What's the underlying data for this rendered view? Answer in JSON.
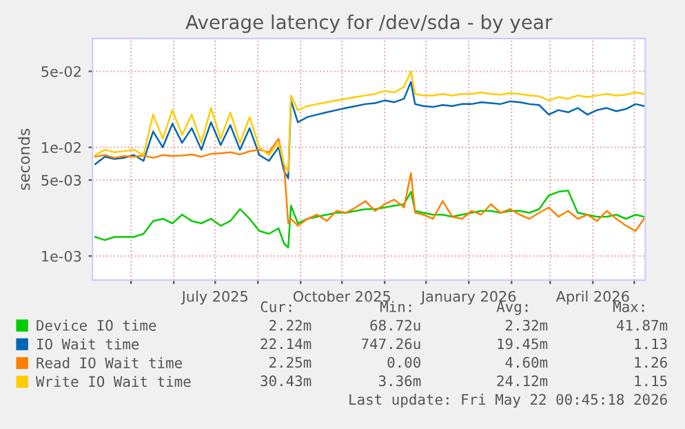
{
  "chart_data": {
    "type": "line",
    "title": "Average latency for /dev/sda - by year",
    "ylabel": "seconds",
    "log": true,
    "grid": true,
    "legend": "bottom",
    "xlim": [
      "2025-04-03",
      "2026-05-09"
    ],
    "xticks": [
      {
        "value": "2025-05-01",
        "label": null
      },
      {
        "value": "2025-06-01",
        "label": null
      },
      {
        "value": "2025-07-01",
        "label": "July 2025"
      },
      {
        "value": "2025-08-01",
        "label": null
      },
      {
        "value": "2025-09-01",
        "label": null
      },
      {
        "value": "2025-10-01",
        "label": "October 2025"
      },
      {
        "value": "2025-11-01",
        "label": null
      },
      {
        "value": "2025-12-01",
        "label": null
      },
      {
        "value": "2026-01-01",
        "label": "January 2026"
      },
      {
        "value": "2026-02-01",
        "label": null
      },
      {
        "value": "2026-03-01",
        "label": null
      },
      {
        "value": "2026-04-01",
        "label": "April 2026"
      },
      {
        "value": "2026-05-01",
        "label": null
      }
    ],
    "ylim": [
      0.0006,
      0.1
    ],
    "yticks": [
      {
        "value": 0.001,
        "label": "1e-03"
      },
      {
        "value": 0.005,
        "label": "5e-03"
      },
      {
        "value": 0.01,
        "label": "1e-02"
      },
      {
        "value": 0.05,
        "label": "5e-02"
      }
    ],
    "x": [
      "2025-04-05",
      "2025-04-12",
      "2025-04-19",
      "2025-04-26",
      "2025-05-03",
      "2025-05-10",
      "2025-05-17",
      "2025-05-24",
      "2025-05-31",
      "2025-06-07",
      "2025-06-14",
      "2025-06-21",
      "2025-06-28",
      "2025-07-05",
      "2025-07-12",
      "2025-07-19",
      "2025-07-26",
      "2025-08-02",
      "2025-08-09",
      "2025-08-16",
      "2025-08-20",
      "2025-08-23",
      "2025-08-25",
      "2025-08-30",
      "2025-09-06",
      "2025-09-13",
      "2025-09-20",
      "2025-09-27",
      "2025-10-04",
      "2025-10-11",
      "2025-10-18",
      "2025-10-25",
      "2025-11-01",
      "2025-11-08",
      "2025-11-15",
      "2025-11-20",
      "2025-11-23",
      "2025-11-29",
      "2025-12-06",
      "2025-12-13",
      "2025-12-20",
      "2025-12-27",
      "2026-01-03",
      "2026-01-10",
      "2026-01-17",
      "2026-01-24",
      "2026-01-31",
      "2026-02-07",
      "2026-02-14",
      "2026-02-21",
      "2026-02-28",
      "2026-03-07",
      "2026-03-14",
      "2026-03-21",
      "2026-03-28",
      "2026-04-04",
      "2026-04-11",
      "2026-04-18",
      "2026-04-25",
      "2026-05-02",
      "2026-05-08"
    ],
    "series": [
      {
        "name": "Device IO time",
        "color": "#00cc00",
        "values": [
          0.0015,
          0.0014,
          0.0015,
          0.0015,
          0.0015,
          0.0016,
          0.0021,
          0.0022,
          0.002,
          0.0024,
          0.0021,
          0.002,
          0.0022,
          0.0019,
          0.0021,
          0.0027,
          0.0022,
          0.0017,
          0.0016,
          0.0018,
          0.0013,
          0.0012,
          0.0029,
          0.002,
          0.0022,
          0.0023,
          0.0024,
          0.0025,
          0.0025,
          0.0026,
          0.0027,
          0.0027,
          0.0028,
          0.0029,
          0.003,
          0.0039,
          0.0026,
          0.0025,
          0.0024,
          0.0024,
          0.0023,
          0.0024,
          0.0025,
          0.0026,
          0.0026,
          0.0025,
          0.0026,
          0.0026,
          0.0025,
          0.0027,
          0.0036,
          0.0039,
          0.004,
          0.0025,
          0.0024,
          0.0023,
          0.0023,
          0.0024,
          0.0022,
          0.0024,
          0.0023
        ]
      },
      {
        "name": "IO Wait time",
        "color": "#0066b3",
        "values": [
          0.007,
          0.0082,
          0.0078,
          0.008,
          0.0085,
          0.0075,
          0.014,
          0.01,
          0.0165,
          0.011,
          0.015,
          0.0095,
          0.017,
          0.0105,
          0.016,
          0.0095,
          0.015,
          0.0085,
          0.0075,
          0.01,
          0.006,
          0.0052,
          0.027,
          0.017,
          0.019,
          0.02,
          0.021,
          0.022,
          0.023,
          0.024,
          0.025,
          0.0255,
          0.027,
          0.026,
          0.028,
          0.04,
          0.025,
          0.024,
          0.0235,
          0.0245,
          0.024,
          0.025,
          0.025,
          0.026,
          0.0255,
          0.025,
          0.0265,
          0.026,
          0.025,
          0.0245,
          0.02,
          0.022,
          0.021,
          0.023,
          0.02,
          0.022,
          0.023,
          0.0215,
          0.0225,
          0.025,
          0.024
        ]
      },
      {
        "name": "Read IO Wait time",
        "color": "#ff8000",
        "values": [
          0.0082,
          0.0085,
          0.008,
          0.0083,
          0.0082,
          0.0084,
          0.008,
          0.0085,
          0.0083,
          0.0084,
          0.0086,
          0.0082,
          0.0087,
          0.0088,
          0.009,
          0.0086,
          0.0092,
          0.0095,
          0.009,
          0.012,
          0.0068,
          0.002,
          0.0022,
          0.0019,
          0.0022,
          0.0024,
          0.0021,
          0.0026,
          0.0025,
          0.0028,
          0.0032,
          0.0026,
          0.003,
          0.0033,
          0.0028,
          0.0058,
          0.0025,
          0.0024,
          0.0022,
          0.0032,
          0.0023,
          0.0022,
          0.0026,
          0.0024,
          0.003,
          0.0025,
          0.0027,
          0.0024,
          0.0022,
          0.0025,
          0.0028,
          0.0023,
          0.0026,
          0.0022,
          0.0024,
          0.0021,
          0.0026,
          0.0022,
          0.0019,
          0.0017,
          0.0022
        ]
      },
      {
        "name": "Write IO Wait time",
        "color": "#ffcc00",
        "values": [
          0.0085,
          0.0095,
          0.009,
          0.0092,
          0.0095,
          0.0085,
          0.02,
          0.012,
          0.022,
          0.013,
          0.02,
          0.011,
          0.023,
          0.012,
          0.021,
          0.011,
          0.019,
          0.01,
          0.0085,
          0.011,
          0.007,
          0.006,
          0.03,
          0.022,
          0.024,
          0.025,
          0.026,
          0.027,
          0.028,
          0.029,
          0.03,
          0.031,
          0.033,
          0.032,
          0.036,
          0.05,
          0.031,
          0.03,
          0.03,
          0.031,
          0.03,
          0.031,
          0.031,
          0.032,
          0.031,
          0.0305,
          0.0315,
          0.031,
          0.03,
          0.0295,
          0.027,
          0.029,
          0.028,
          0.03,
          0.029,
          0.03,
          0.031,
          0.03,
          0.0305,
          0.032,
          0.031
        ]
      }
    ],
    "annotations": [
      "Cur:",
      "Min:",
      "Avg:",
      "Max:",
      "2.22m",
      "68.72u",
      "2.32m",
      "41.87m",
      "22.14m",
      "747.26u",
      "19.45m",
      "1.13",
      "2.25m",
      "0.00",
      "4.60m",
      "1.26",
      "30.43m",
      "3.36m",
      "24.12m",
      "1.15",
      "Last update: Fri May 22 00:45:18 2026"
    ]
  }
}
